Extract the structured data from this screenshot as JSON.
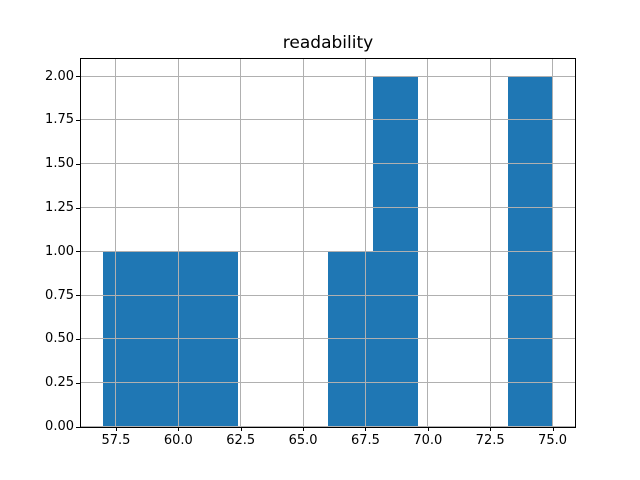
{
  "figure": {
    "background": "#ffffff"
  },
  "chart_data": {
    "type": "bar",
    "subtype": "histogram",
    "title": "readability",
    "xlabel": "",
    "ylabel": "",
    "bar_color": "#1f77b4",
    "grid_color": "#b0b0b0",
    "spine_color": "#000000",
    "grid": true,
    "legend": false,
    "bin_edges": [
      57.0,
      58.8,
      60.6,
      62.4,
      64.2,
      66.0,
      67.8,
      69.6,
      71.4,
      73.2,
      75.0
    ],
    "counts": [
      1,
      1,
      1,
      0,
      0,
      1,
      2,
      0,
      0,
      2
    ],
    "xlim": [
      56.1,
      75.9
    ],
    "ylim": [
      0,
      2.1
    ],
    "xtick_values": [
      57.5,
      60.0,
      62.5,
      65.0,
      67.5,
      70.0,
      72.5,
      75.0
    ],
    "xtick_labels": [
      "57.5",
      "60.0",
      "62.5",
      "65.0",
      "67.5",
      "70.0",
      "72.5",
      "75.0"
    ],
    "ytick_values": [
      0.0,
      0.25,
      0.5,
      0.75,
      1.0,
      1.25,
      1.5,
      1.75,
      2.0
    ],
    "ytick_labels": [
      "0.00",
      "0.25",
      "0.50",
      "0.75",
      "1.00",
      "1.25",
      "1.50",
      "1.75",
      "2.00"
    ]
  }
}
